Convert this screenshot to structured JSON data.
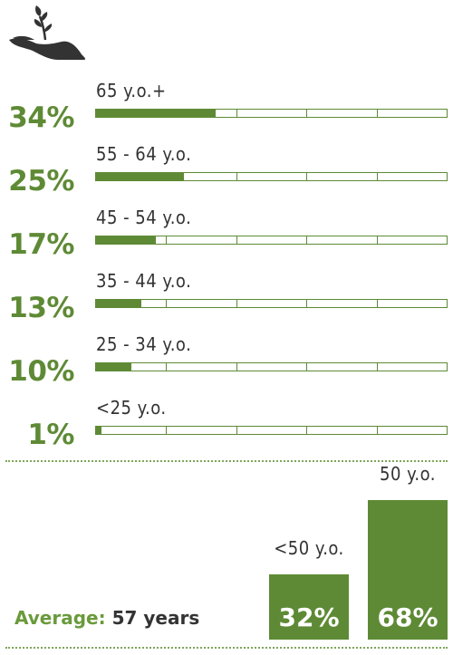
{
  "colors": {
    "accent": "#5e8a35",
    "text": "#333333"
  },
  "icon": "hand-holding-plant-icon",
  "chart_data": [
    {
      "type": "bar",
      "orientation": "horizontal",
      "categories": [
        "65 y.o.+",
        "55 - 64 y.o.",
        "45 - 54 y.o.",
        "35 - 44 y.o.",
        "25 - 34 y.o.",
        "<25 y.o."
      ],
      "values": [
        34,
        25,
        17,
        13,
        10,
        1
      ],
      "value_labels": [
        "34%",
        "25%",
        "17%",
        "13%",
        "10%",
        "1%"
      ],
      "xlim": [
        0,
        100
      ],
      "segments": 5
    },
    {
      "type": "bar",
      "categories": [
        "<50 y.o.",
        "50 y.o."
      ],
      "values": [
        32,
        68
      ],
      "value_labels": [
        "32%",
        "68%"
      ],
      "ylim": [
        0,
        68
      ]
    }
  ],
  "average": {
    "label": "Average:",
    "value": "57 years"
  }
}
